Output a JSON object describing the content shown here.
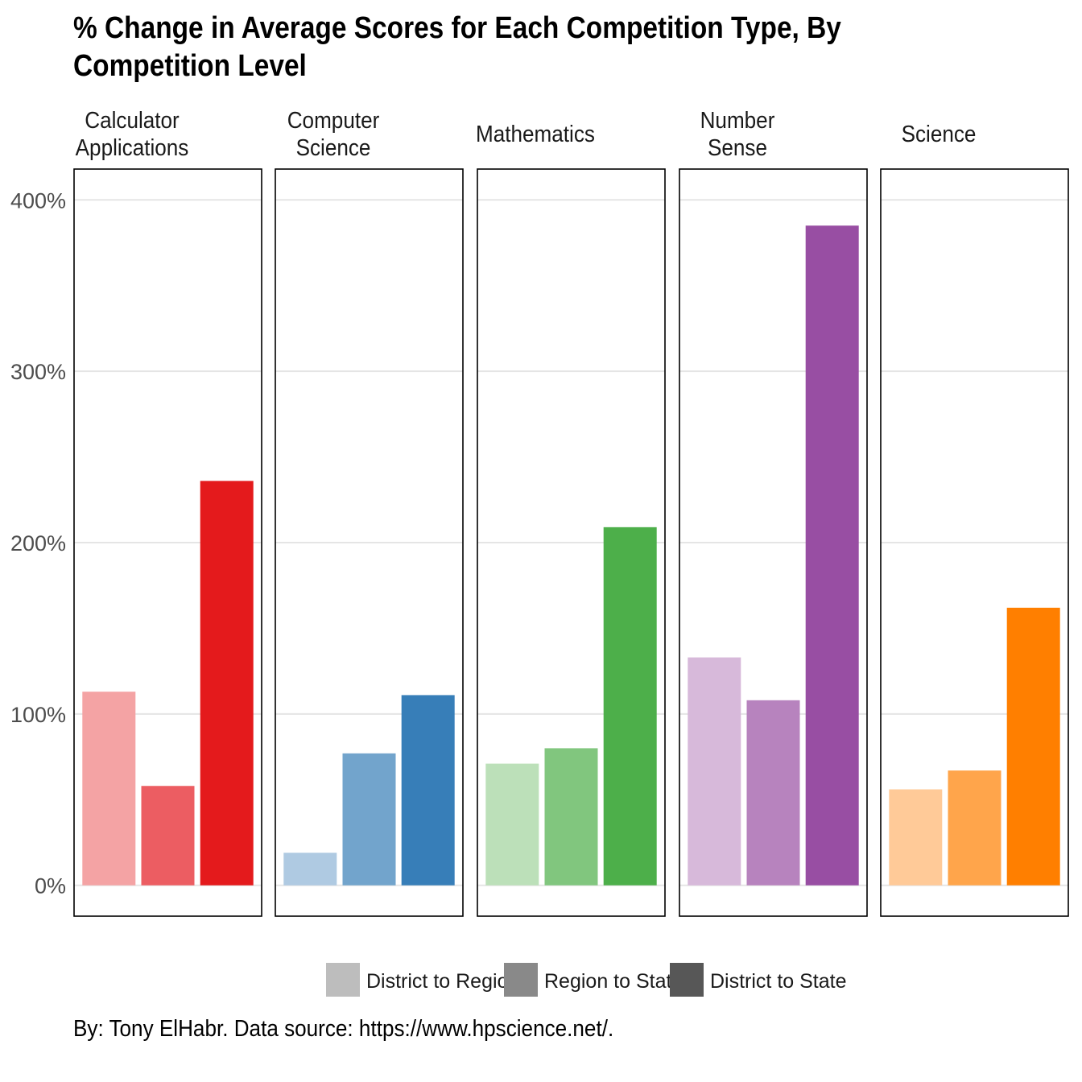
{
  "title": "% Change in Average Scores for Each Competition Type, By Competition Level",
  "caption": "By: Tony ElHabr. Data source: https://www.hpscience.net/.",
  "chart_data": {
    "type": "bar",
    "facets": [
      {
        "label": "Calculator\nApplications",
        "colors": [
          "#f4a3a4",
          "#ec5d62",
          "#e41a1c"
        ]
      },
      {
        "label": "Computer\nScience",
        "colors": [
          "#afcae2",
          "#72a4cc",
          "#377eb8"
        ]
      },
      {
        "label": "Mathematics",
        "colors": [
          "#bce0b9",
          "#81c67e",
          "#4daf4a"
        ]
      },
      {
        "label": "Number\nSense",
        "colors": [
          "#d7b9da",
          "#b783be",
          "#984ea3"
        ]
      },
      {
        "label": "Science",
        "colors": [
          "#ffca98",
          "#ffa54b",
          "#ff7f00"
        ]
      }
    ],
    "categories": [
      "District to Region",
      "Region to State",
      "District to State"
    ],
    "series": [
      {
        "name": "Calculator Applications",
        "values": [
          113,
          58,
          236
        ]
      },
      {
        "name": "Computer Science",
        "values": [
          19,
          77,
          111
        ]
      },
      {
        "name": "Mathematics",
        "values": [
          71,
          80,
          209
        ]
      },
      {
        "name": "Number Sense",
        "values": [
          133,
          108,
          385
        ]
      },
      {
        "name": "Science",
        "values": [
          56,
          67,
          162
        ]
      }
    ],
    "yticks": [
      "0%",
      "100%",
      "200%",
      "300%",
      "400%"
    ],
    "ylim": [
      -18,
      418
    ],
    "grid": true,
    "legend": {
      "position": "bottom",
      "entries": [
        "District to Region",
        "Region to State",
        "District to State"
      ],
      "colors": [
        "#bdbdbd",
        "#898989",
        "#575757"
      ]
    }
  }
}
